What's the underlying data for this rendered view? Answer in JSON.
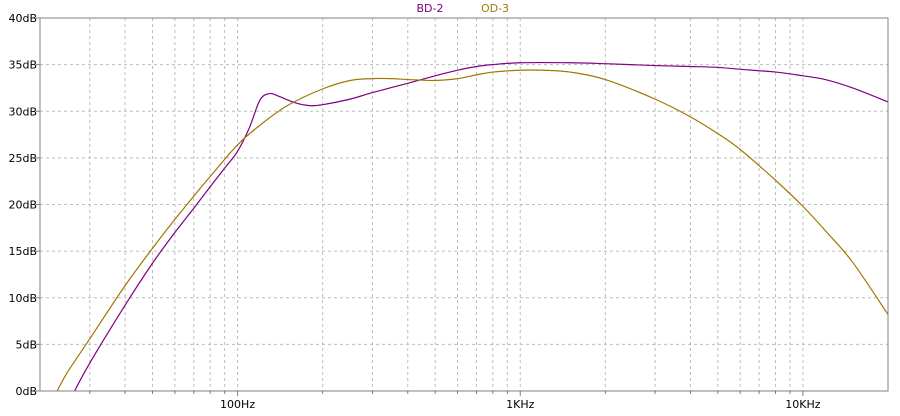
{
  "chart_data": {
    "type": "line",
    "x_scale": "log",
    "xlim": [
      20,
      20000
    ],
    "ylim": [
      0,
      40
    ],
    "grid": true,
    "legend_position": "top-center",
    "x_ticks": [
      {
        "value": 100,
        "label": "100Hz"
      },
      {
        "value": 1000,
        "label": "1KHz"
      },
      {
        "value": 10000,
        "label": "10KHz"
      }
    ],
    "y_ticks": [
      {
        "value": 0,
        "label": "0dB"
      },
      {
        "value": 5,
        "label": "5dB"
      },
      {
        "value": 10,
        "label": "10dB"
      },
      {
        "value": 15,
        "label": "15dB"
      },
      {
        "value": 20,
        "label": "20dB"
      },
      {
        "value": 25,
        "label": "25dB"
      },
      {
        "value": 30,
        "label": "30dB"
      },
      {
        "value": 35,
        "label": "35dB"
      },
      {
        "value": 40,
        "label": "40dB"
      }
    ],
    "series": [
      {
        "name": "BD-2",
        "color": "#800080",
        "points": [
          [
            26.5,
            0
          ],
          [
            30,
            3
          ],
          [
            40,
            9.2
          ],
          [
            50,
            13.7
          ],
          [
            60,
            17
          ],
          [
            70,
            19.6
          ],
          [
            80,
            21.9
          ],
          [
            90,
            23.9
          ],
          [
            100,
            25.7
          ],
          [
            110,
            28.2
          ],
          [
            120,
            31.2
          ],
          [
            130,
            31.9
          ],
          [
            140,
            31.6
          ],
          [
            160,
            30.9
          ],
          [
            180,
            30.6
          ],
          [
            200,
            30.7
          ],
          [
            250,
            31.3
          ],
          [
            300,
            32
          ],
          [
            400,
            33
          ],
          [
            500,
            33.8
          ],
          [
            600,
            34.4
          ],
          [
            700,
            34.8
          ],
          [
            800,
            35
          ],
          [
            1000,
            35.2
          ],
          [
            1500,
            35.2
          ],
          [
            2000,
            35.1
          ],
          [
            3000,
            34.9
          ],
          [
            4000,
            34.8
          ],
          [
            5000,
            34.7
          ],
          [
            6000,
            34.5
          ],
          [
            8000,
            34.2
          ],
          [
            10000,
            33.8
          ],
          [
            12000,
            33.4
          ],
          [
            15000,
            32.5
          ],
          [
            20000,
            31
          ]
        ]
      },
      {
        "name": "OD-3",
        "color": "#A07800",
        "points": [
          [
            23,
            0
          ],
          [
            25,
            2
          ],
          [
            30,
            5.6
          ],
          [
            40,
            11.3
          ],
          [
            50,
            15.3
          ],
          [
            60,
            18.4
          ],
          [
            70,
            20.9
          ],
          [
            80,
            23
          ],
          [
            100,
            26.4
          ],
          [
            120,
            28.5
          ],
          [
            150,
            30.6
          ],
          [
            200,
            32.4
          ],
          [
            250,
            33.3
          ],
          [
            300,
            33.5
          ],
          [
            350,
            33.5
          ],
          [
            400,
            33.4
          ],
          [
            500,
            33.3
          ],
          [
            600,
            33.5
          ],
          [
            700,
            33.9
          ],
          [
            800,
            34.2
          ],
          [
            1000,
            34.4
          ],
          [
            1200,
            34.4
          ],
          [
            1500,
            34.2
          ],
          [
            2000,
            33.4
          ],
          [
            3000,
            31.3
          ],
          [
            4000,
            29.4
          ],
          [
            5000,
            27.6
          ],
          [
            6000,
            25.9
          ],
          [
            8000,
            22.6
          ],
          [
            10000,
            19.8
          ],
          [
            12000,
            17.2
          ],
          [
            15000,
            13.8
          ],
          [
            20000,
            8.2
          ]
        ]
      }
    ]
  }
}
